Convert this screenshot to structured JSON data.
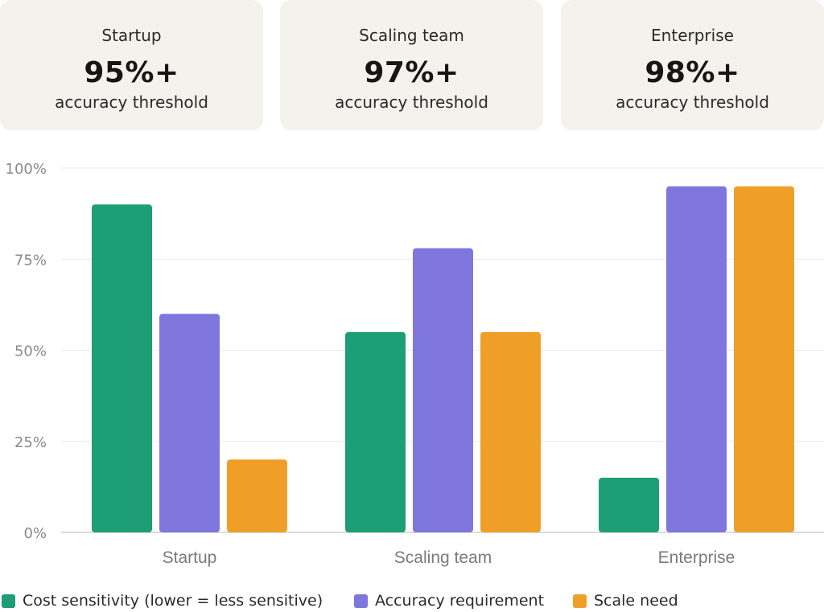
{
  "cards": [
    {
      "label": "Startup",
      "value": "95%+",
      "sub": "accuracy threshold"
    },
    {
      "label": "Scaling team",
      "value": "97%+",
      "sub": "accuracy threshold"
    },
    {
      "label": "Enterprise",
      "value": "98%+",
      "sub": "accuracy threshold"
    }
  ],
  "chart_data": {
    "type": "bar",
    "categories": [
      "Startup",
      "Scaling team",
      "Enterprise"
    ],
    "series": [
      {
        "name": "Cost sensitivity (lower = less sensitive)",
        "color": "#1d9e75",
        "values": [
          90,
          55,
          15
        ]
      },
      {
        "name": "Accuracy requirement",
        "color": "#7f77dd",
        "values": [
          60,
          78,
          95
        ]
      },
      {
        "name": "Scale need",
        "color": "#ef9f27",
        "values": [
          20,
          55,
          95
        ]
      }
    ],
    "ylim": [
      0,
      100
    ],
    "yticks": [
      0,
      25,
      50,
      75,
      100
    ],
    "ytick_labels": [
      "0%",
      "25%",
      "50%",
      "75%",
      "100%"
    ],
    "grid": true,
    "legend": "bottom",
    "title": "",
    "xlabel": "",
    "ylabel": ""
  }
}
